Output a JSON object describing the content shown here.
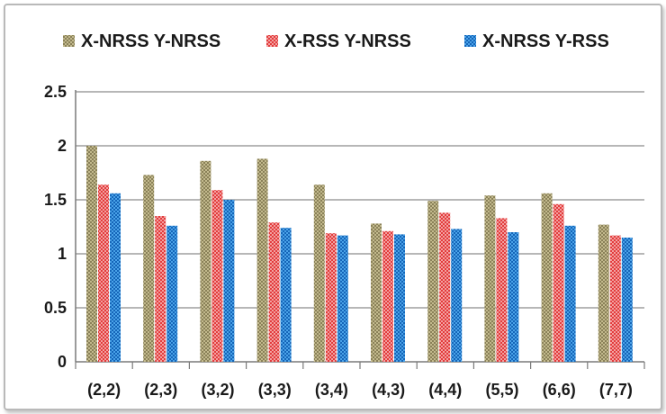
{
  "chart_data": {
    "type": "bar",
    "categories": [
      "(2,2)",
      "(2,3)",
      "(3,2)",
      "(3,3)",
      "(3,4)",
      "(4,3)",
      "(4,4)",
      "(5,5)",
      "(6,6)",
      "(7,7)"
    ],
    "series": [
      {
        "name": "X-NRSS Y-NRSS",
        "color": "#9b9268",
        "values": [
          2.0,
          1.73,
          1.86,
          1.88,
          1.64,
          1.28,
          1.49,
          1.54,
          1.56,
          1.27
        ]
      },
      {
        "name": "X-RSS Y-NRSS",
        "color": "#e84a4a",
        "values": [
          1.64,
          1.35,
          1.59,
          1.29,
          1.19,
          1.21,
          1.38,
          1.33,
          1.46,
          1.17
        ]
      },
      {
        "name": "X-NRSS Y-RSS",
        "color": "#1f7fd0",
        "values": [
          1.56,
          1.26,
          1.5,
          1.24,
          1.17,
          1.18,
          1.23,
          1.2,
          1.26,
          1.15
        ]
      }
    ],
    "ylim": [
      0,
      2.5
    ],
    "yticks": [
      "0",
      "0.5",
      "1",
      "1.5",
      "2",
      "2.5"
    ],
    "grid": true,
    "legend": "top"
  }
}
